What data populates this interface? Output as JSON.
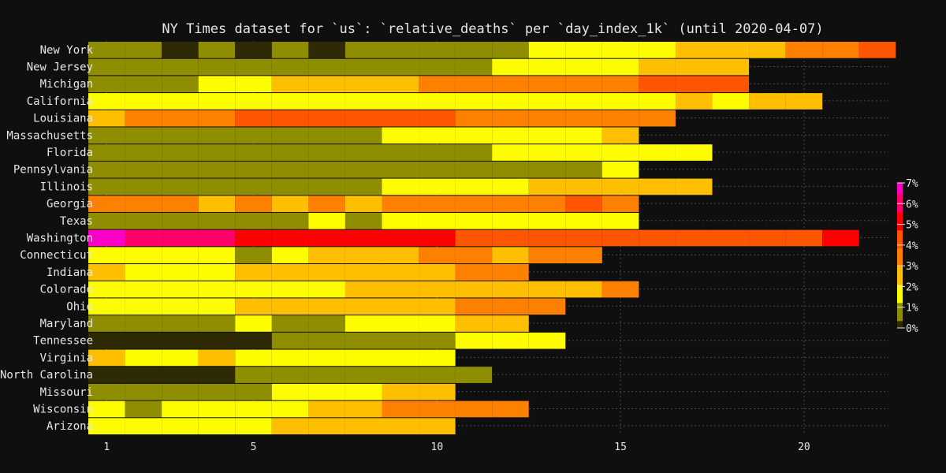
{
  "chart_data": {
    "type": "heatmap",
    "title": "NY Times dataset for `us`: `relative_deaths` per `day_index_1k` (until 2020-04-07)",
    "xlabel": "",
    "ylabel": "",
    "x_ticks": [
      1,
      5,
      10,
      15,
      20
    ],
    "xlim": [
      0.8,
      22.3
    ],
    "grid": true,
    "legend": {
      "placement": "right",
      "labels": [
        "7%",
        "6%",
        "5%",
        "4%",
        "3%",
        "2%",
        "1%",
        "0%"
      ],
      "range": [
        0,
        7
      ],
      "colors": [
        "#2e2a05",
        "#8e8e00",
        "#fdfd00",
        "#fdbf00",
        "#fd8000",
        "#fd5500",
        "#fd0000",
        "#fd006a",
        "#fd00c8"
      ]
    },
    "rows": [
      {
        "label": "New York",
        "values": [
          0.9,
          0.9,
          0.2,
          0.9,
          0.2,
          0.9,
          0.2,
          0.9,
          0.9,
          0.9,
          0.9,
          0.9,
          1.8,
          1.8,
          1.8,
          1.8,
          2.6,
          2.6,
          2.6,
          3.8,
          3.8,
          4.3
        ]
      },
      {
        "label": "New Jersey",
        "values": [
          0.9,
          0.9,
          0.9,
          0.9,
          0.9,
          0.9,
          0.9,
          0.9,
          0.9,
          0.9,
          0.9,
          1.8,
          1.8,
          1.8,
          1.8,
          2.6,
          2.6,
          2.6
        ]
      },
      {
        "label": "Michigan",
        "values": [
          0.9,
          0.9,
          0.9,
          1.8,
          1.8,
          2.6,
          2.6,
          2.6,
          2.6,
          3.8,
          3.8,
          3.8,
          3.8,
          3.8,
          3.8,
          4.5,
          4.5,
          4.5
        ]
      },
      {
        "label": "California",
        "values": [
          1.8,
          1.8,
          1.8,
          1.8,
          1.8,
          1.8,
          1.8,
          1.8,
          1.8,
          1.8,
          1.8,
          1.8,
          1.8,
          1.8,
          1.8,
          1.8,
          2.6,
          1.8,
          2.6,
          2.6
        ]
      },
      {
        "label": "Louisiana",
        "values": [
          2.6,
          3.8,
          3.8,
          3.8,
          4.3,
          4.3,
          4.3,
          4.3,
          4.3,
          4.3,
          3.8,
          3.8,
          3.8,
          3.8,
          3.8,
          3.8
        ]
      },
      {
        "label": "Massachusetts",
        "values": [
          0.9,
          0.9,
          0.9,
          0.9,
          0.9,
          0.9,
          0.9,
          0.9,
          1.8,
          1.8,
          1.8,
          1.8,
          1.8,
          1.8,
          2.6
        ]
      },
      {
        "label": "Florida",
        "values": [
          0.9,
          0.9,
          0.9,
          0.9,
          0.9,
          0.9,
          0.9,
          0.9,
          0.9,
          0.9,
          0.9,
          1.8,
          1.8,
          1.8,
          1.8,
          1.8,
          1.8
        ]
      },
      {
        "label": "Pennsylvania",
        "values": [
          0.9,
          0.9,
          0.9,
          0.9,
          0.9,
          0.9,
          0.9,
          0.9,
          0.9,
          0.9,
          0.9,
          0.9,
          0.9,
          0.9,
          1.8
        ]
      },
      {
        "label": "Illinois",
        "values": [
          0.9,
          0.9,
          0.9,
          0.9,
          0.9,
          0.9,
          0.9,
          0.9,
          1.8,
          1.8,
          1.8,
          1.8,
          2.6,
          2.6,
          2.6,
          2.6,
          2.6
        ]
      },
      {
        "label": "Georgia",
        "values": [
          3.8,
          3.8,
          3.8,
          2.6,
          3.8,
          2.6,
          3.8,
          2.6,
          3.8,
          3.8,
          3.8,
          3.8,
          3.8,
          4.3,
          3.8
        ]
      },
      {
        "label": "Texas",
        "values": [
          0.9,
          0.9,
          0.9,
          0.9,
          0.9,
          0.9,
          1.8,
          0.9,
          1.8,
          1.8,
          1.8,
          1.8,
          1.8,
          1.8,
          1.8
        ]
      },
      {
        "label": "Washington",
        "values": [
          6.6,
          5.9,
          5.9,
          5.9,
          5.1,
          5.1,
          5.1,
          5.1,
          5.1,
          5.1,
          4.3,
          4.3,
          4.3,
          4.3,
          4.3,
          4.3,
          4.3,
          4.3,
          4.3,
          4.3,
          5.1
        ]
      },
      {
        "label": "Connecticut",
        "values": [
          1.8,
          1.8,
          1.8,
          1.8,
          0.9,
          1.8,
          2.6,
          2.6,
          2.6,
          3.8,
          3.8,
          2.6,
          3.8,
          3.8
        ]
      },
      {
        "label": "Indiana",
        "values": [
          2.6,
          1.8,
          1.8,
          1.8,
          2.6,
          2.6,
          2.6,
          2.6,
          2.6,
          2.6,
          3.8,
          3.8
        ]
      },
      {
        "label": "Colorado",
        "values": [
          1.8,
          1.8,
          1.8,
          1.8,
          1.8,
          1.8,
          1.8,
          2.6,
          2.6,
          2.6,
          2.6,
          2.6,
          2.6,
          2.6,
          3.8
        ]
      },
      {
        "label": "Ohio",
        "values": [
          1.8,
          1.8,
          1.8,
          1.8,
          2.6,
          2.6,
          2.6,
          2.6,
          2.6,
          2.6,
          3.8,
          3.8,
          3.8
        ]
      },
      {
        "label": "Maryland",
        "values": [
          0.9,
          0.9,
          0.9,
          0.9,
          1.8,
          0.9,
          0.9,
          1.8,
          1.8,
          1.8,
          2.6,
          2.6
        ]
      },
      {
        "label": "Tennessee",
        "values": [
          0.2,
          0.2,
          0.2,
          0.2,
          0.2,
          0.9,
          0.9,
          0.9,
          0.9,
          0.9,
          1.8,
          1.8,
          1.8
        ]
      },
      {
        "label": "Virginia",
        "values": [
          2.6,
          1.8,
          1.8,
          2.6,
          1.8,
          1.8,
          1.8,
          1.8,
          1.8,
          1.8
        ]
      },
      {
        "label": "North Carolina",
        "values": [
          0.2,
          0.2,
          0.2,
          0.2,
          0.9,
          0.9,
          0.9,
          0.9,
          0.9,
          0.9,
          0.9
        ]
      },
      {
        "label": "Missouri",
        "values": [
          0.9,
          0.9,
          0.9,
          0.9,
          0.9,
          1.8,
          1.8,
          1.8,
          2.6,
          2.6
        ]
      },
      {
        "label": "Wisconsin",
        "values": [
          1.8,
          0.9,
          1.8,
          1.8,
          1.8,
          1.8,
          2.6,
          2.6,
          3.8,
          3.8,
          3.8,
          3.8
        ]
      },
      {
        "label": "Arizona",
        "values": [
          1.8,
          1.8,
          1.8,
          1.8,
          1.8,
          2.6,
          2.6,
          2.6,
          2.6,
          2.6
        ]
      }
    ]
  }
}
